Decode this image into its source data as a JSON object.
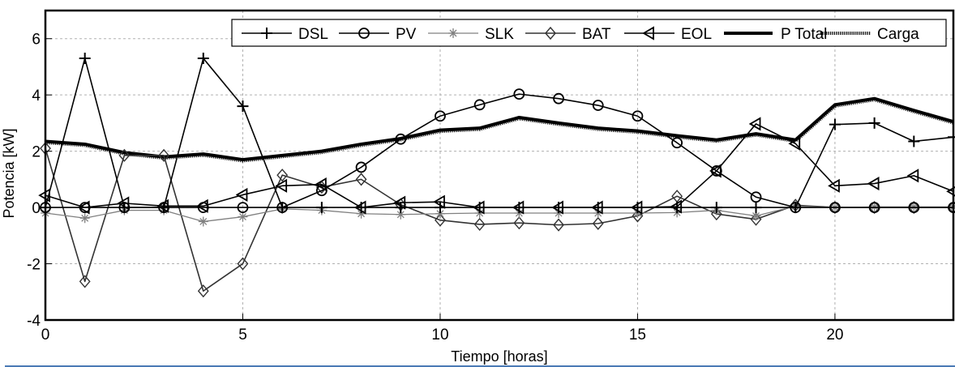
{
  "chart_data": {
    "type": "line",
    "title": "",
    "xlabel": "Tiempo [horas]",
    "ylabel": "Potencia [kW]",
    "xlim": [
      0,
      23
    ],
    "ylim": [
      -4,
      7
    ],
    "xticks": [
      0,
      5,
      10,
      15,
      20
    ],
    "xtick_labels": [
      "0",
      "5",
      "10",
      "15",
      "20"
    ],
    "yticks": [
      -4,
      -2,
      0,
      2,
      4,
      6
    ],
    "ytick_labels": [
      "-4",
      "-2",
      "0",
      "2",
      "4",
      "6"
    ],
    "grid": true,
    "legend_position": "top-right",
    "legend_orientation": "horizontal",
    "x": [
      0,
      1,
      2,
      3,
      4,
      5,
      6,
      7,
      8,
      9,
      10,
      11,
      12,
      13,
      14,
      15,
      16,
      17,
      18,
      19,
      20,
      21,
      22,
      23
    ],
    "series": [
      {
        "name": "DSL",
        "marker": "plus",
        "color": "#000000",
        "values": [
          0,
          5.3,
          0,
          0,
          5.3,
          3.6,
          0,
          0,
          0,
          0,
          0,
          0,
          0,
          0,
          0,
          0,
          0,
          0,
          0,
          0,
          2.95,
          3.0,
          2.35,
          2.5
        ]
      },
      {
        "name": "PV",
        "marker": "circle",
        "color": "#000000",
        "values": [
          0,
          0,
          0,
          0,
          0,
          0,
          0,
          0.6,
          1.43,
          2.43,
          3.25,
          3.65,
          4.03,
          3.87,
          3.63,
          3.25,
          2.3,
          1.3,
          0.37,
          0,
          0,
          0,
          0,
          0
        ]
      },
      {
        "name": "SLK",
        "marker": "asterisk",
        "color": "#808080",
        "values": [
          -0.2,
          -0.38,
          -0.1,
          -0.1,
          -0.5,
          -0.33,
          -0.05,
          -0.1,
          -0.22,
          -0.25,
          -0.22,
          -0.2,
          -0.2,
          -0.2,
          -0.2,
          -0.2,
          -0.18,
          -0.1,
          -0.3,
          0.05,
          0,
          0.02,
          0.02,
          0.02
        ]
      },
      {
        "name": "BAT",
        "marker": "diamond",
        "color": "#333333",
        "values": [
          2.1,
          -2.63,
          1.85,
          1.85,
          -2.97,
          -2.0,
          1.15,
          0.72,
          1.0,
          0.1,
          -0.45,
          -0.6,
          -0.55,
          -0.62,
          -0.57,
          -0.3,
          0.4,
          -0.23,
          -0.42,
          0.08,
          0,
          0,
          0,
          0
        ]
      },
      {
        "name": "EOL",
        "marker": "triangle-left",
        "color": "#000000",
        "values": [
          0.43,
          0,
          0.15,
          0.05,
          0.05,
          0.45,
          0.77,
          0.82,
          0,
          0.17,
          0.2,
          0,
          0,
          0,
          0,
          0,
          0.03,
          1.3,
          2.97,
          2.27,
          0.77,
          0.85,
          1.13,
          0.57
        ]
      },
      {
        "name": "P Total",
        "marker": "none",
        "color": "#000000",
        "style": "thick-solid",
        "values": [
          2.35,
          2.25,
          1.95,
          1.8,
          1.9,
          1.7,
          1.85,
          2.0,
          2.25,
          2.45,
          2.75,
          2.82,
          3.2,
          3.0,
          2.82,
          2.72,
          2.55,
          2.4,
          2.62,
          2.4,
          3.65,
          3.87,
          3.45,
          3.05
        ]
      },
      {
        "name": "Carga",
        "marker": "none",
        "color": "#000000",
        "style": "thick-dotted",
        "values": [
          2.32,
          2.22,
          1.92,
          1.77,
          1.87,
          1.67,
          1.82,
          1.97,
          2.22,
          2.42,
          2.72,
          2.79,
          3.17,
          2.97,
          2.79,
          2.69,
          2.52,
          2.37,
          2.59,
          2.37,
          3.62,
          3.84,
          3.42,
          3.02
        ]
      }
    ]
  }
}
